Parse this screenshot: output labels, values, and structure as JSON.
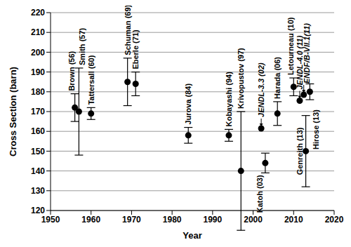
{
  "chart_data": {
    "type": "scatter",
    "xlabel": "Year",
    "ylabel": "Cross Section (barn)",
    "xlim": [
      1950,
      2020
    ],
    "xticks": [
      1950,
      1960,
      1970,
      1980,
      1990,
      2000,
      2010,
      2020
    ],
    "ylim": [
      120,
      220
    ],
    "yticks": [
      120,
      130,
      140,
      150,
      160,
      170,
      180,
      190,
      200,
      210,
      220
    ],
    "grid": true,
    "color": "#000000",
    "marker": "circle",
    "labels": [
      "Brown (56)",
      "Smith (57)",
      "Tattersall (60)",
      "Schuman (69)",
      "Eberle (71)",
      "Jurova (84)",
      "Kobayashi (94)",
      "Krivopustov (97)",
      "JENDL-3.3 (02)",
      "Katoh (03)",
      "Harada (06)",
      "Letourneau (10)",
      "JENDL-4.0 (11)",
      "ENDF/B-VII.1(11)",
      "Genreith (13)",
      "Hirose (13)"
    ],
    "x": [
      1956,
      1957,
      1960,
      1969,
      1971,
      1984,
      1994,
      1997,
      2002,
      2003,
      2006,
      2010,
      2011.5,
      2012.5,
      2013,
      2014
    ],
    "values": [
      172,
      170,
      169,
      185,
      184,
      158,
      158,
      140,
      161.5,
      144,
      169,
      182.5,
      175.5,
      178.5,
      150,
      180
    ],
    "errors": [
      7,
      22,
      3,
      12,
      6,
      4,
      3,
      30,
      null,
      5,
      6,
      4.5,
      null,
      null,
      18,
      4
    ]
  }
}
